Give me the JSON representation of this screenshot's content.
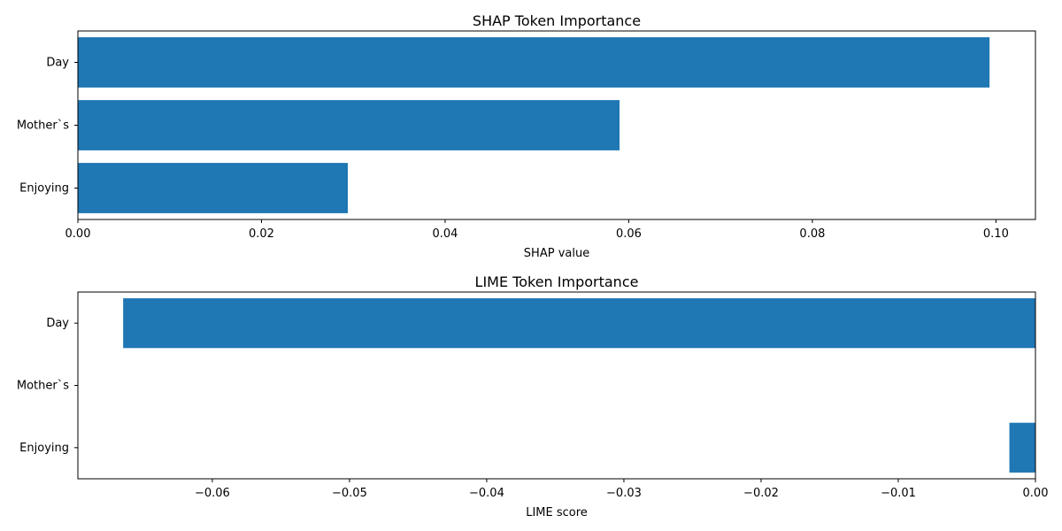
{
  "chart_data": [
    {
      "type": "bar",
      "orientation": "horizontal",
      "title": "SHAP Token Importance",
      "xlabel": "SHAP value",
      "ylabel": "",
      "categories": [
        "Day",
        "Mother`s",
        "Enjoying"
      ],
      "values": [
        0.0993,
        0.059,
        0.0294
      ],
      "xlim": [
        0,
        0.1043
      ],
      "xticks": [
        0.0,
        0.02,
        0.04,
        0.06,
        0.08,
        0.1
      ],
      "xtick_labels": [
        "0.00",
        "0.02",
        "0.04",
        "0.06",
        "0.08",
        "0.10"
      ],
      "bar_color": "#1f77b4",
      "grid": false
    },
    {
      "type": "bar",
      "orientation": "horizontal",
      "title": "LIME Token Importance",
      "xlabel": "LIME score",
      "ylabel": "",
      "categories": [
        "Day",
        "Mother`s",
        "Enjoying"
      ],
      "values": [
        -0.0665,
        0.0,
        -0.0019
      ],
      "xlim": [
        -0.0698,
        0.0
      ],
      "xticks": [
        -0.06,
        -0.05,
        -0.04,
        -0.03,
        -0.02,
        -0.01,
        0.0
      ],
      "xtick_labels": [
        "−0.06",
        "−0.05",
        "−0.04",
        "−0.03",
        "−0.02",
        "−0.01",
        "0.00"
      ],
      "bar_color": "#1f77b4",
      "grid": false
    }
  ]
}
